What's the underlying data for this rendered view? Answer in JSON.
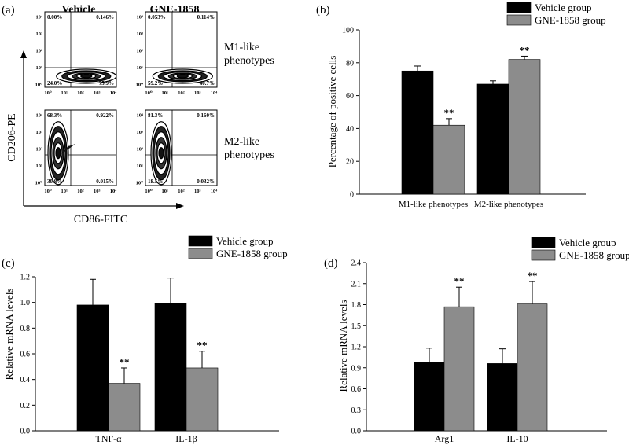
{
  "panels": {
    "a": "(a)",
    "b": "(b)",
    "c": "(c)",
    "d": "(d)"
  },
  "flow": {
    "col_labels": [
      "Vehicle",
      "GNE-1858"
    ],
    "row_labels": [
      [
        "M1-like",
        "phenotypes"
      ],
      [
        "M2-like",
        "phenotypes"
      ]
    ],
    "y_axis_label": "CD206-PE",
    "x_axis_label": "CD86-FITC",
    "y_ticks": [
      "10⁴",
      "10³",
      "10²",
      "10¹",
      "10⁰"
    ],
    "x_ticks": [
      "10⁰",
      "10¹",
      "10²",
      "10³",
      "10⁴"
    ],
    "plots": [
      {
        "id": "m1-vehicle",
        "quadrants": {
          "ul": "0.00%",
          "ur": "0.146%",
          "ll": "24.0%",
          "lr": "75.9%"
        }
      },
      {
        "id": "m1-gne",
        "quadrants": {
          "ul": "0.053%",
          "ur": "0.114%",
          "ll": "59.2%",
          "lr": "40.7%"
        }
      },
      {
        "id": "m2-vehicle",
        "quadrants": {
          "ul": "68.3%",
          "ur": "0.922%",
          "ll": "30.8%",
          "lr": "0.015%"
        }
      },
      {
        "id": "m2-gne",
        "quadrants": {
          "ul": "81.3%",
          "ur": "0.160%",
          "ll": "18.5%",
          "lr": "0.032%"
        }
      }
    ]
  },
  "colors": {
    "vehicle": "#000000",
    "gne": "#8c8c8c"
  },
  "chart_data": [
    {
      "id": "b",
      "type": "bar",
      "title": "",
      "xlabel": "",
      "ylabel": "Percentage of positive cells",
      "categories": [
        "M1-like phenotypes",
        "M2-like phenotypes"
      ],
      "series": [
        {
          "name": "Vehicle group",
          "values": [
            75,
            67
          ],
          "errors": [
            3,
            2
          ],
          "sig": [
            "",
            ""
          ]
        },
        {
          "name": "GNE-1858 group",
          "values": [
            42,
            82
          ],
          "errors": [
            4,
            2
          ],
          "sig": [
            "**",
            "**"
          ]
        }
      ],
      "ylim": [
        0,
        100
      ],
      "yticks": [
        0,
        20,
        40,
        60,
        80,
        100
      ],
      "ytick_labels": [
        "0",
        "20",
        "40",
        "60",
        "80",
        "100"
      ],
      "legend": "top-right"
    },
    {
      "id": "c",
      "type": "bar",
      "title": "",
      "xlabel": "",
      "ylabel": "Relative mRNA levels",
      "categories": [
        "TNF-α",
        "IL-1β"
      ],
      "series": [
        {
          "name": "Vehicle group",
          "values": [
            0.98,
            0.99
          ],
          "errors": [
            0.2,
            0.2
          ],
          "sig": [
            "",
            ""
          ]
        },
        {
          "name": "GNE-1858 group",
          "values": [
            0.37,
            0.49
          ],
          "errors": [
            0.12,
            0.13
          ],
          "sig": [
            "**",
            "**"
          ]
        }
      ],
      "ylim": [
        0,
        1.2
      ],
      "yticks": [
        0,
        0.2,
        0.4,
        0.6,
        0.8,
        1.0,
        1.2
      ],
      "ytick_labels": [
        "0.0",
        "0.2",
        "0.4",
        "0.6",
        "0.8",
        "1.0",
        "1.2"
      ],
      "legend": "top-right"
    },
    {
      "id": "d",
      "type": "bar",
      "title": "",
      "xlabel": "",
      "ylabel": "Relative mRNA levels",
      "categories": [
        "Arg1",
        "IL-10"
      ],
      "series": [
        {
          "name": "Vehicle group",
          "values": [
            0.98,
            0.96
          ],
          "errors": [
            0.2,
            0.21
          ],
          "sig": [
            "",
            ""
          ]
        },
        {
          "name": "GNE-1858 group",
          "values": [
            1.77,
            1.81
          ],
          "errors": [
            0.28,
            0.32
          ],
          "sig": [
            "**",
            "**"
          ]
        }
      ],
      "ylim": [
        0,
        2.4
      ],
      "yticks": [
        0,
        0.3,
        0.6,
        0.9,
        1.2,
        1.5,
        1.8,
        2.1,
        2.4
      ],
      "ytick_labels": [
        "0.0",
        "0.3",
        "0.6",
        "0.9",
        "1.2",
        "1.5",
        "1.8",
        "2.1",
        "2.4"
      ],
      "legend": "top-right"
    }
  ]
}
